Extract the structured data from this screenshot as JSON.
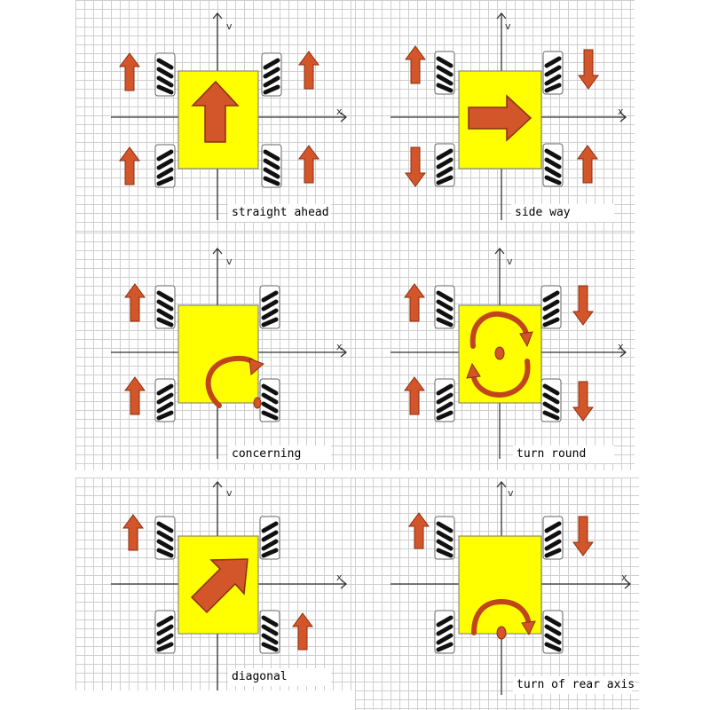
{
  "colors": {
    "body": "#ffff00",
    "arrow": "#d2562a",
    "arrow_stroke": "#8b2f12",
    "axis": "#333333",
    "grid": "#cfcfcf"
  },
  "axes": {
    "x_label": "x",
    "y_label": "v"
  },
  "panels": [
    {
      "caption": "straight ahead",
      "wheel_arrows": [
        "up",
        "up",
        "up",
        "up"
      ],
      "center_symbol": "arrow-up"
    },
    {
      "caption": "side way",
      "wheel_arrows": [
        "up",
        "down",
        "down",
        "up"
      ],
      "center_symbol": "arrow-right"
    },
    {
      "caption": "concerning",
      "wheel_arrows": [
        "up",
        "none",
        "up",
        "none"
      ],
      "center_symbol": "curved-arrow-corner"
    },
    {
      "caption": "turn round",
      "wheel_arrows": [
        "up",
        "down",
        "up",
        "down"
      ],
      "center_symbol": "rotation-circle"
    },
    {
      "caption": "diagonal",
      "wheel_arrows": [
        "up",
        "none",
        "none",
        "up"
      ],
      "center_symbol": "arrow-diagonal"
    },
    {
      "caption": "turn of rear axis",
      "wheel_arrows": [
        "up",
        "down",
        "none",
        "none"
      ],
      "center_symbol": "curved-arrow-rear"
    }
  ]
}
